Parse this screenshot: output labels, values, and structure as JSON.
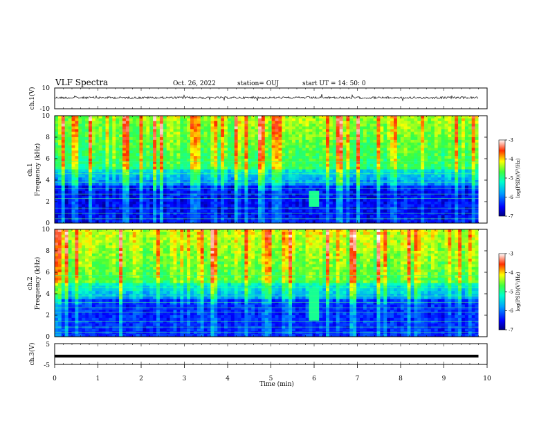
{
  "header": {
    "title": "VLF Spectra",
    "date": "Oct. 26, 2022",
    "station": "station= OUJ",
    "start": "start  UT =   14: 50: 0"
  },
  "colors": {
    "background": "#ffffff",
    "axis": "#000000",
    "spectrogram_floor": "#000080"
  },
  "chart_data": [
    {
      "type": "line",
      "name": "ch1-waveform",
      "ylabel": "ch.1(V)",
      "ylim": [
        -10,
        10
      ],
      "yticks": [
        "10",
        "-10"
      ],
      "xlim": [
        0,
        10
      ],
      "description_values": {
        "baseline": 0,
        "noise_amplitude": 1
      }
    },
    {
      "type": "heatmap",
      "name": "ch1-spectrogram",
      "ylabel": "ch.1\nFrequency  (kHz)",
      "ylabel_line1": "ch.1",
      "ylabel_line2": "Frequency  (kHz)",
      "ylim": [
        0,
        10
      ],
      "yticks": [
        "0",
        "2",
        "4",
        "6",
        "8",
        "10"
      ],
      "xlim": [
        0,
        10
      ],
      "data_end_min": 9.8,
      "colorbar": {
        "label": "log(PSD)(V²/Hz)",
        "range": [
          -7,
          -3
        ],
        "ticks": [
          "-3",
          "-4",
          "-5",
          "-6",
          "-7"
        ]
      }
    },
    {
      "type": "heatmap",
      "name": "ch2-spectrogram",
      "ylabel": "ch.2\nFrequency  (kHz)",
      "ylabel_line1": "ch.2",
      "ylabel_line2": "Frequency  (kHz)",
      "ylim": [
        0,
        10
      ],
      "yticks": [
        "0",
        "2",
        "4",
        "6",
        "8",
        "10"
      ],
      "xlim": [
        0,
        10
      ],
      "data_end_min": 9.8,
      "colorbar": {
        "label": "log(PSD)(V²/Hz)",
        "range": [
          -7,
          -3
        ],
        "ticks": [
          "-3",
          "-4",
          "-5",
          "-6",
          "-7"
        ]
      }
    },
    {
      "type": "line",
      "name": "ch3-waveform",
      "ylabel": "ch.3(V)",
      "ylim": [
        -5,
        5
      ],
      "yticks": [
        "5",
        "-5"
      ],
      "xlim": [
        0,
        10
      ],
      "xlabel": "Time  (min)",
      "xticks": [
        "0",
        "1",
        "2",
        "3",
        "4",
        "5",
        "6",
        "7",
        "8",
        "9",
        "10"
      ],
      "description_values": {
        "level": -1
      }
    }
  ]
}
